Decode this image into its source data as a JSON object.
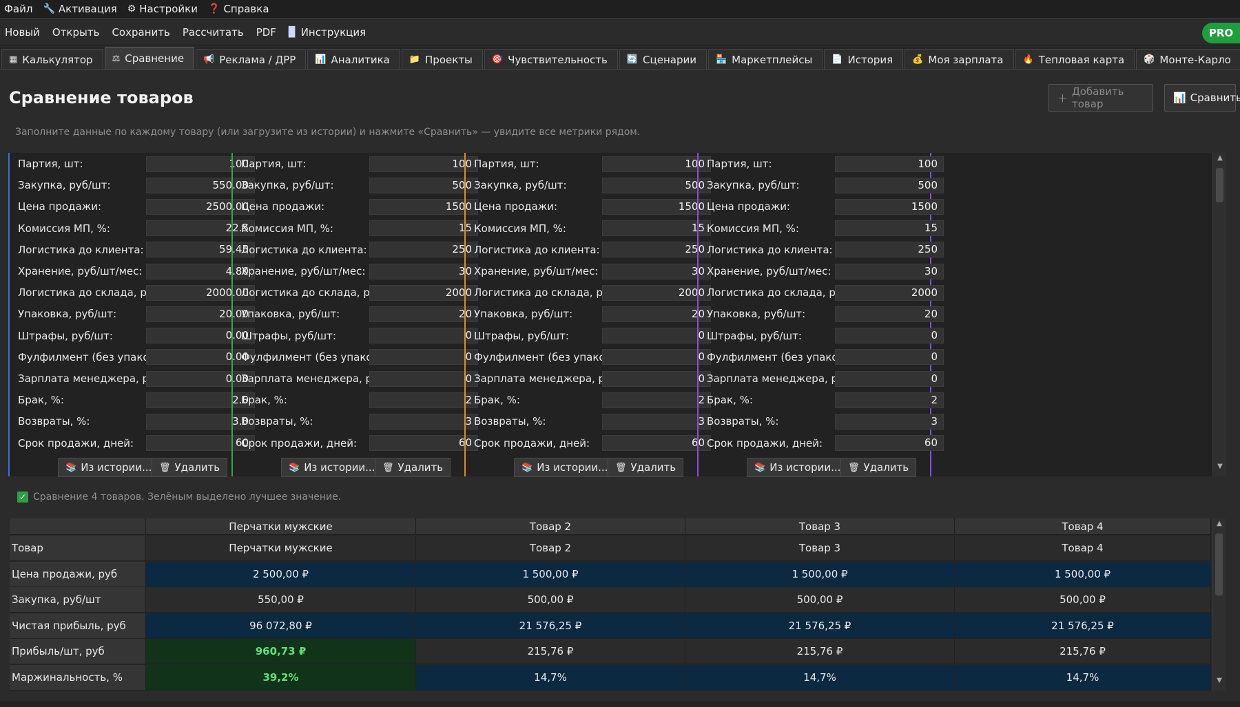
{
  "menu": [
    {
      "label": "Файл",
      "icon": ""
    },
    {
      "label": "Активация",
      "icon": "🔧"
    },
    {
      "label": "Настройки",
      "icon": "⚙"
    },
    {
      "label": "Справка",
      "icon": "❓"
    }
  ],
  "toolbar": {
    "items": [
      "Новый",
      "Открыть",
      "Сохранить",
      "Рассчитать",
      "PDF"
    ],
    "manual_label": "Инструкция",
    "pro_badge": "PRO"
  },
  "tabs": [
    {
      "label": "Калькулятор",
      "icon": "▦",
      "active": false
    },
    {
      "label": "Сравнение",
      "icon": "⚖",
      "active": true
    },
    {
      "label": "Реклама / ДРР",
      "icon": "📢",
      "active": false
    },
    {
      "label": "Аналитика",
      "icon": "📊",
      "active": false
    },
    {
      "label": "Проекты",
      "icon": "📁",
      "active": false
    },
    {
      "label": "Чувствительность",
      "icon": "🎯",
      "active": false
    },
    {
      "label": "Сценарии",
      "icon": "🔄",
      "active": false
    },
    {
      "label": "Маркетплейсы",
      "icon": "🏪",
      "active": false
    },
    {
      "label": "История",
      "icon": "📄",
      "active": false
    },
    {
      "label": "Моя зарплата",
      "icon": "💰",
      "active": false
    },
    {
      "label": "Тепловая карта",
      "icon": "🔥",
      "active": false
    },
    {
      "label": "Монте-Карло",
      "icon": "🎲",
      "active": false
    }
  ],
  "header": {
    "title": "Сравнение товаров",
    "add_button": "Добавить товар",
    "compare_button": "Сравнить",
    "subtitle": "Заполните данные по каждому товару (или загрузите из истории) и нажмите «Сравнить» — увидите все метрики рядом."
  },
  "fields": [
    "Партия, шт:",
    "Закупка, руб/шт:",
    "Цена продажи:",
    "Комиссия МП, %:",
    "Логистика до клиента:",
    "Хранение, руб/шт/мес:",
    "Логистика до склада, руб:",
    "Упаковка, руб/шт:",
    "Штрафы, руб/шт:",
    "Фулфилмент (без упаковк",
    "Зарплата менеджера, руб",
    "Брак, %:",
    "Возвраты, %:",
    "Срок продажи, дней:"
  ],
  "panel_buttons": {
    "history": "Из истории...",
    "delete": "Удалить"
  },
  "products": [
    {
      "color": "#3a6fd8",
      "values": [
        "100",
        "550.00",
        "2500.00",
        "22.5",
        "59.45",
        "4.80",
        "2000.00",
        "20.00",
        "0.00",
        "0.00",
        "0.00",
        "2.0",
        "3.0",
        "60"
      ]
    },
    {
      "color": "#2fa84f",
      "values": [
        "100",
        "500",
        "1500",
        "15",
        "250",
        "30",
        "2000",
        "20",
        "0",
        "0",
        "0",
        "2",
        "3",
        "60"
      ]
    },
    {
      "color": "#e08a1e",
      "values": [
        "100",
        "500",
        "1500",
        "15",
        "250",
        "30",
        "2000",
        "20",
        "0",
        "0",
        "0",
        "2",
        "3",
        "60"
      ]
    },
    {
      "color": "#8a4fd6",
      "values": [
        "100",
        "500",
        "1500",
        "15",
        "250",
        "30",
        "2000",
        "20",
        "0",
        "0",
        "0",
        "2",
        "3",
        "60"
      ]
    }
  ],
  "status_text": "Сравнение 4 товаров. Зелёным выделено лучшее значение.",
  "results": {
    "columns": [
      "Перчатки мужские",
      "Товар 2",
      "Товар 3",
      "Товар 4"
    ],
    "rows": [
      {
        "label": "Товар",
        "values": [
          "Перчатки мужские",
          "Товар 2",
          "Товар 3",
          "Товар 4"
        ],
        "bg": [
          "#2b2b2b",
          "#2b2b2b",
          "#2b2b2b",
          "#2b2b2b"
        ],
        "best": []
      },
      {
        "label": "Цена продажи, руб",
        "values": [
          "2 500,00 ₽",
          "1 500,00 ₽",
          "1 500,00 ₽",
          "1 500,00 ₽"
        ],
        "bg": [
          "#0c2942",
          "#0c2942",
          "#0c2942",
          "#0c2942"
        ],
        "best": []
      },
      {
        "label": "Закупка, руб/шт",
        "values": [
          "550,00 ₽",
          "500,00 ₽",
          "500,00 ₽",
          "500,00 ₽"
        ],
        "bg": [
          "#2b2b2b",
          "#2b2b2b",
          "#2b2b2b",
          "#2b2b2b"
        ],
        "best": []
      },
      {
        "label": "Чистая прибыль, руб",
        "values": [
          "96 072,80 ₽",
          "21 576,25 ₽",
          "21 576,25 ₽",
          "21 576,25 ₽"
        ],
        "bg": [
          "#0c2942",
          "#0c2942",
          "#0c2942",
          "#0c2942"
        ],
        "best": []
      },
      {
        "label": "Прибыль/шт, руб",
        "values": [
          "960,73 ₽",
          "215,76 ₽",
          "215,76 ₽",
          "215,76 ₽"
        ],
        "bg": [
          "#10331a",
          "#2b2b2b",
          "#2b2b2b",
          "#2b2b2b"
        ],
        "best": [
          0
        ]
      },
      {
        "label": "Маржинальность, %",
        "values": [
          "39,2%",
          "14,7%",
          "14,7%",
          "14,7%"
        ],
        "bg": [
          "#10331a",
          "#0c2942",
          "#0c2942",
          "#0c2942"
        ],
        "best": [
          0
        ]
      }
    ]
  }
}
